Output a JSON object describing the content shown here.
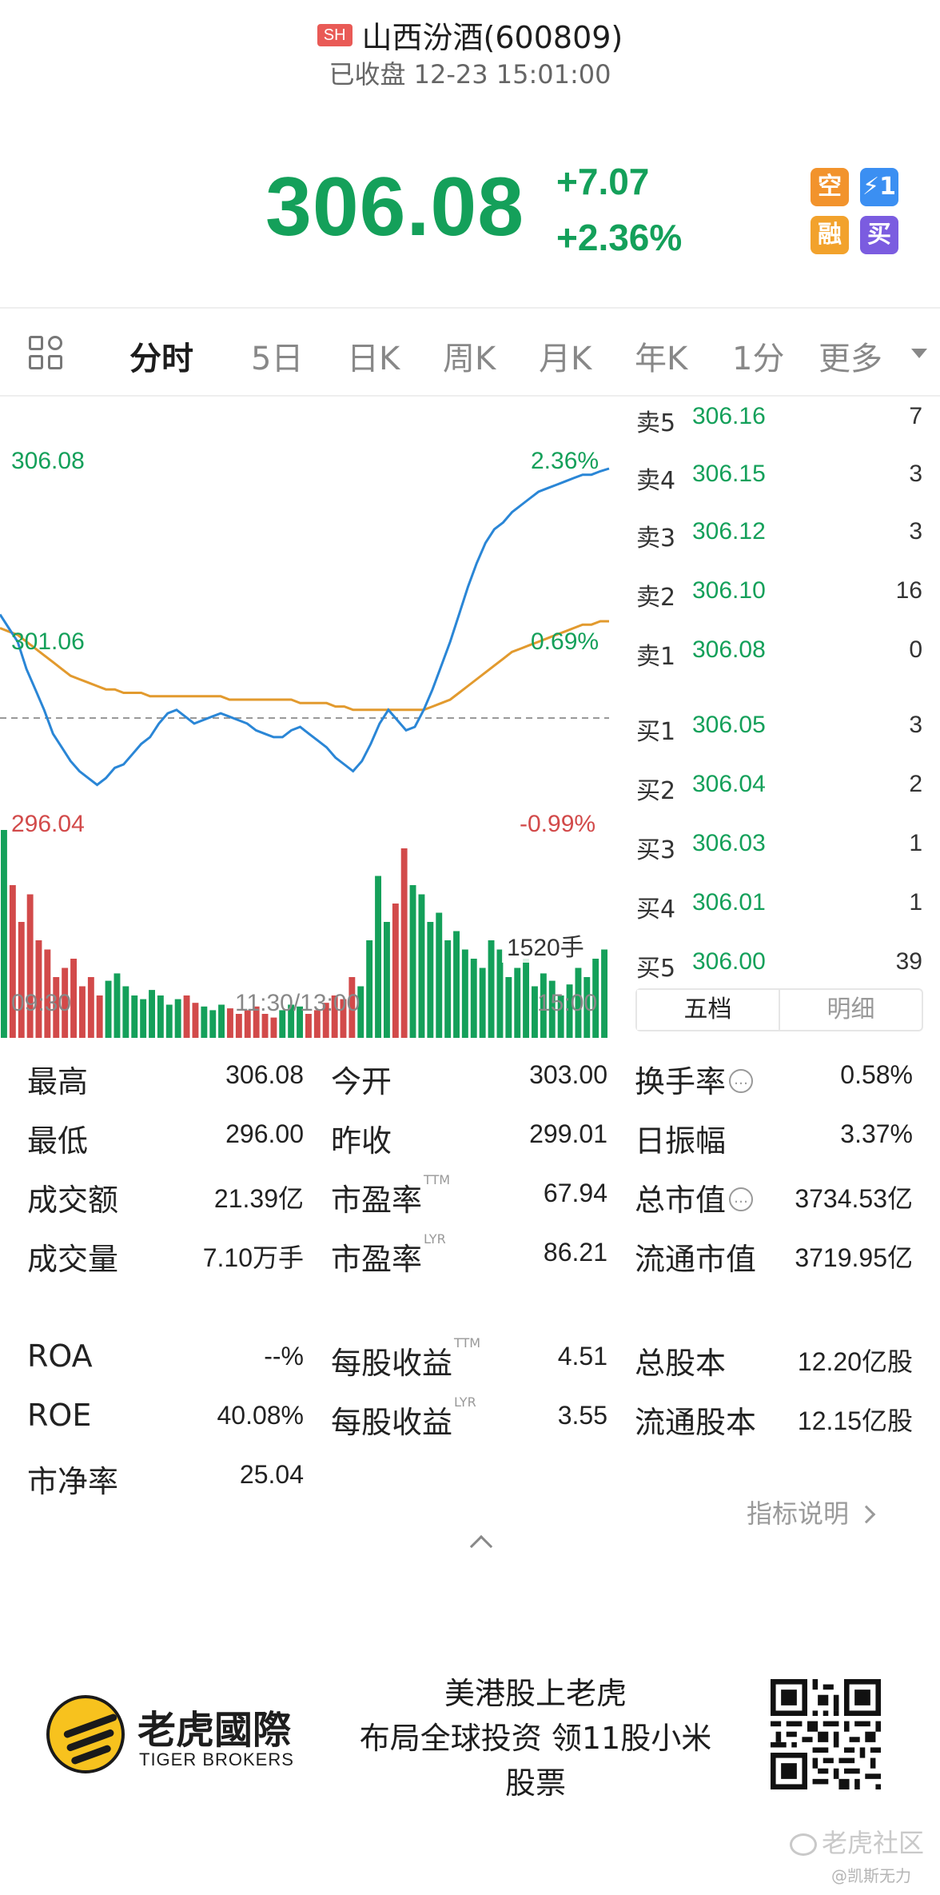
{
  "header": {
    "exchange": "SH",
    "name": "山西汾酒(600809)",
    "status": "已收盘 12-23 15:01:00"
  },
  "quote": {
    "price": "306.08",
    "change": "+7.07",
    "change_pct": "+2.36%",
    "actions": {
      "short": "空",
      "fast": "⚡1",
      "margin": "融",
      "buy": "买"
    }
  },
  "tabs": [
    {
      "label": "分时"
    },
    {
      "label": "5日"
    },
    {
      "label": "日K"
    },
    {
      "label": "周K"
    },
    {
      "label": "月K"
    },
    {
      "label": "年K"
    },
    {
      "label": "1分"
    },
    {
      "label": "更多"
    }
  ],
  "chart_data": {
    "type": "line",
    "x_ticks": [
      "09:30",
      "11:30/13:00",
      "15:00"
    ],
    "y_left": [
      "306.08",
      "301.06",
      "296.04"
    ],
    "y_right": [
      "2.36%",
      "0.69%",
      "-0.99%"
    ],
    "ylim": [
      296.04,
      306.08
    ],
    "prev_close": 299.01,
    "volume_label": "1520手",
    "series": [
      {
        "values": [
          301.8,
          301.4,
          301.0,
          300.2,
          299.6,
          299.0,
          298.3,
          297.9,
          297.5,
          297.2,
          297.0,
          296.8,
          297.0,
          297.3,
          297.4,
          297.7,
          298.0,
          298.2,
          298.6,
          298.9,
          299.0,
          298.8,
          298.6,
          298.7,
          298.8,
          298.9,
          298.8,
          298.7,
          298.6,
          298.4,
          298.3,
          298.2,
          298.2,
          298.4,
          298.5,
          298.3,
          298.1,
          297.9,
          297.6,
          297.4,
          297.2,
          297.5,
          298.0,
          298.6,
          299.0,
          298.7,
          298.4,
          298.5,
          299.0,
          299.6,
          300.3,
          301.0,
          301.8,
          302.6,
          303.3,
          303.9,
          304.3,
          304.5,
          304.8,
          305.0,
          305.2,
          305.4,
          305.5,
          305.6,
          305.7,
          305.8,
          305.9,
          305.9,
          306.0,
          306.08
        ]
      },
      {
        "values": [
          301.4,
          301.3,
          301.2,
          301.0,
          300.8,
          300.6,
          300.4,
          300.2,
          300.0,
          299.9,
          299.8,
          299.7,
          299.6,
          299.6,
          299.5,
          299.5,
          299.5,
          299.4,
          299.4,
          299.4,
          299.4,
          299.4,
          299.4,
          299.4,
          299.4,
          299.4,
          299.3,
          299.3,
          299.3,
          299.3,
          299.3,
          299.3,
          299.3,
          299.3,
          299.2,
          299.2,
          299.2,
          299.2,
          299.1,
          299.1,
          299.0,
          299.0,
          299.0,
          299.0,
          299.0,
          299.0,
          299.0,
          299.0,
          299.0,
          299.1,
          299.2,
          299.3,
          299.5,
          299.7,
          299.9,
          300.1,
          300.3,
          300.5,
          300.7,
          300.8,
          300.9,
          301.0,
          301.1,
          301.2,
          301.3,
          301.4,
          301.5,
          301.5,
          301.6,
          301.6
        ]
      }
    ],
    "volume": [
      120,
      90,
      70,
      85,
      60,
      55,
      40,
      45,
      50,
      35,
      40,
      30,
      38,
      42,
      35,
      30,
      28,
      33,
      30,
      25,
      28,
      30,
      26,
      24,
      22,
      25,
      23,
      20,
      22,
      24,
      20,
      18,
      22,
      25,
      24,
      20,
      22,
      26,
      30,
      28,
      40,
      35,
      60,
      95,
      70,
      80,
      110,
      90,
      85,
      70,
      75,
      60,
      65,
      55,
      50,
      45,
      60,
      55,
      40,
      45,
      50,
      35,
      42,
      38,
      30,
      36,
      45,
      40,
      50,
      55
    ]
  },
  "order_book": {
    "asks": [
      {
        "label": "卖5",
        "price": "306.16",
        "qty": "7"
      },
      {
        "label": "卖4",
        "price": "306.15",
        "qty": "3"
      },
      {
        "label": "卖3",
        "price": "306.12",
        "qty": "3"
      },
      {
        "label": "卖2",
        "price": "306.10",
        "qty": "16"
      },
      {
        "label": "卖1",
        "price": "306.08",
        "qty": "0"
      }
    ],
    "bids": [
      {
        "label": "买1",
        "price": "306.05",
        "qty": "3"
      },
      {
        "label": "买2",
        "price": "306.04",
        "qty": "2"
      },
      {
        "label": "买3",
        "price": "306.03",
        "qty": "1"
      },
      {
        "label": "买4",
        "price": "306.01",
        "qty": "1"
      },
      {
        "label": "买5",
        "price": "306.00",
        "qty": "39"
      }
    ],
    "tab_five": "五档",
    "tab_detail": "明细"
  },
  "stats": {
    "high_k": "最高",
    "high_v": "306.08",
    "open_k": "今开",
    "open_v": "303.00",
    "turnover_k": "换手率",
    "turnover_v": "0.58%",
    "low_k": "最低",
    "low_v": "296.00",
    "prev_k": "昨收",
    "prev_v": "299.01",
    "amp_k": "日振幅",
    "amp_v": "3.37%",
    "amount_k": "成交额",
    "amount_v": "21.39亿",
    "pe_k": "市盈率",
    "pe_sup": "TTM",
    "pe_v": "67.94",
    "mcap_k": "总市值",
    "mcap_v": "3734.53亿",
    "vol_k": "成交量",
    "vol_v": "7.10万手",
    "pe2_k": "市盈率",
    "pe2_sup": "LYR",
    "pe2_v": "86.21",
    "fmcap_k": "流通市值",
    "fmcap_v": "3719.95亿",
    "roa_k": "ROA",
    "roa_v": "--%",
    "eps_k": "每股收益",
    "eps_sup": "TTM",
    "eps_v": "4.51",
    "shares_k": "总股本",
    "shares_v": "12.20亿股",
    "roe_k": "ROE",
    "roe_v": "40.08%",
    "eps2_k": "每股收益",
    "eps2_sup": "LYR",
    "eps2_v": "3.55",
    "fshares_k": "流通股本",
    "fshares_v": "12.15亿股",
    "pb_k": "市净率",
    "pb_v": "25.04",
    "info_glyph": "…"
  },
  "link": {
    "label": "指标说明"
  },
  "ad": {
    "brand_cn": "老虎國際",
    "brand_en": "TIGER BROKERS",
    "line1": "美港股上老虎",
    "line2": "布局全球投资 领11股小米",
    "line3": "股票"
  },
  "footer": {
    "community": "老虎社区",
    "author": "@凯斯无力"
  },
  "colors": {
    "up_green": "#14a05a",
    "down_red": "#d24a4a",
    "price_line": "#2a86d6",
    "avg_line": "#e29a2e"
  }
}
